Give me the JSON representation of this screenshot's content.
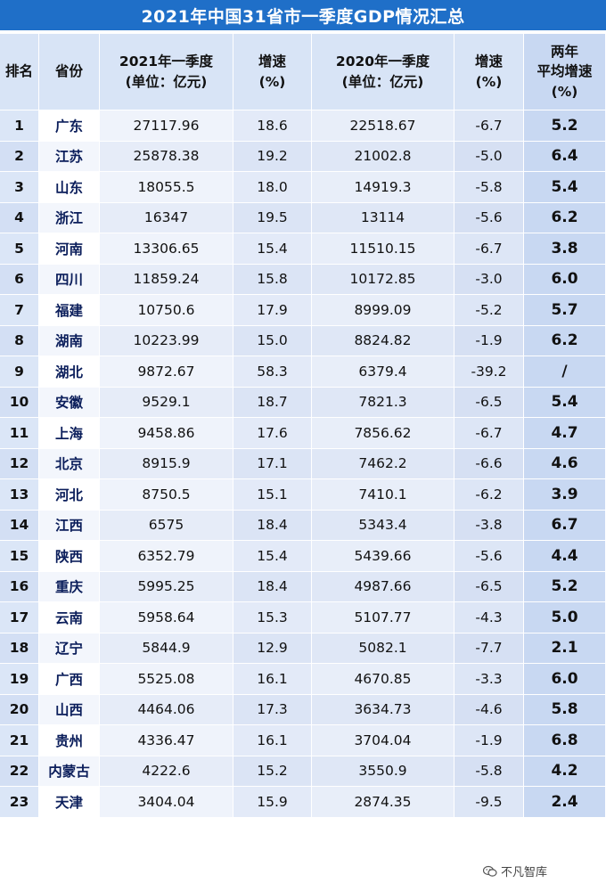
{
  "title": "2021年中国31省市一季度GDP情况汇总",
  "headers": {
    "rank": "排名",
    "province": "省份",
    "gdp2021_line1": "2021年一季度",
    "gdp2021_line2": "(单位：亿元)",
    "speed_line1": "增速",
    "speed_line2": "(%)",
    "gdp2020_line1": "2020年一季度",
    "gdp2020_line2": "(单位：亿元)",
    "speed2020_line1": "增速",
    "speed2020_line2": "(%)",
    "avg_line1": "两年",
    "avg_line2": "平均增速",
    "avg_line3": "(%)"
  },
  "rows": [
    {
      "rank": "1",
      "province": "广东",
      "gdp2021": "27117.96",
      "speed2021": "18.6",
      "gdp2020": "22518.67",
      "speed2020": "-6.7",
      "avg": "5.2"
    },
    {
      "rank": "2",
      "province": "江苏",
      "gdp2021": "25878.38",
      "speed2021": "19.2",
      "gdp2020": "21002.8",
      "speed2020": "-5.0",
      "avg": "6.4"
    },
    {
      "rank": "3",
      "province": "山东",
      "gdp2021": "18055.5",
      "speed2021": "18.0",
      "gdp2020": "14919.3",
      "speed2020": "-5.8",
      "avg": "5.4"
    },
    {
      "rank": "4",
      "province": "浙江",
      "gdp2021": "16347",
      "speed2021": "19.5",
      "gdp2020": "13114",
      "speed2020": "-5.6",
      "avg": "6.2"
    },
    {
      "rank": "5",
      "province": "河南",
      "gdp2021": "13306.65",
      "speed2021": "15.4",
      "gdp2020": "11510.15",
      "speed2020": "-6.7",
      "avg": "3.8"
    },
    {
      "rank": "6",
      "province": "四川",
      "gdp2021": "11859.24",
      "speed2021": "15.8",
      "gdp2020": "10172.85",
      "speed2020": "-3.0",
      "avg": "6.0"
    },
    {
      "rank": "7",
      "province": "福建",
      "gdp2021": "10750.6",
      "speed2021": "17.9",
      "gdp2020": "8999.09",
      "speed2020": "-5.2",
      "avg": "5.7"
    },
    {
      "rank": "8",
      "province": "湖南",
      "gdp2021": "10223.99",
      "speed2021": "15.0",
      "gdp2020": "8824.82",
      "speed2020": "-1.9",
      "avg": "6.2"
    },
    {
      "rank": "9",
      "province": "湖北",
      "gdp2021": "9872.67",
      "speed2021": "58.3",
      "gdp2020": "6379.4",
      "speed2020": "-39.2",
      "avg": "/"
    },
    {
      "rank": "10",
      "province": "安徽",
      "gdp2021": "9529.1",
      "speed2021": "18.7",
      "gdp2020": "7821.3",
      "speed2020": "-6.5",
      "avg": "5.4"
    },
    {
      "rank": "11",
      "province": "上海",
      "gdp2021": "9458.86",
      "speed2021": "17.6",
      "gdp2020": "7856.62",
      "speed2020": "-6.7",
      "avg": "4.7"
    },
    {
      "rank": "12",
      "province": "北京",
      "gdp2021": "8915.9",
      "speed2021": "17.1",
      "gdp2020": "7462.2",
      "speed2020": "-6.6",
      "avg": "4.6"
    },
    {
      "rank": "13",
      "province": "河北",
      "gdp2021": "8750.5",
      "speed2021": "15.1",
      "gdp2020": "7410.1",
      "speed2020": "-6.2",
      "avg": "3.9"
    },
    {
      "rank": "14",
      "province": "江西",
      "gdp2021": "6575",
      "speed2021": "18.4",
      "gdp2020": "5343.4",
      "speed2020": "-3.8",
      "avg": "6.7"
    },
    {
      "rank": "15",
      "province": "陕西",
      "gdp2021": "6352.79",
      "speed2021": "15.4",
      "gdp2020": "5439.66",
      "speed2020": "-5.6",
      "avg": "4.4"
    },
    {
      "rank": "16",
      "province": "重庆",
      "gdp2021": "5995.25",
      "speed2021": "18.4",
      "gdp2020": "4987.66",
      "speed2020": "-6.5",
      "avg": "5.2"
    },
    {
      "rank": "17",
      "province": "云南",
      "gdp2021": "5958.64",
      "speed2021": "15.3",
      "gdp2020": "5107.77",
      "speed2020": "-4.3",
      "avg": "5.0"
    },
    {
      "rank": "18",
      "province": "辽宁",
      "gdp2021": "5844.9",
      "speed2021": "12.9",
      "gdp2020": "5082.1",
      "speed2020": "-7.7",
      "avg": "2.1"
    },
    {
      "rank": "19",
      "province": "广西",
      "gdp2021": "5525.08",
      "speed2021": "16.1",
      "gdp2020": "4670.85",
      "speed2020": "-3.3",
      "avg": "6.0"
    },
    {
      "rank": "20",
      "province": "山西",
      "gdp2021": "4464.06",
      "speed2021": "17.3",
      "gdp2020": "3634.73",
      "speed2020": "-4.6",
      "avg": "5.8"
    },
    {
      "rank": "21",
      "province": "贵州",
      "gdp2021": "4336.47",
      "speed2021": "16.1",
      "gdp2020": "3704.04",
      "speed2020": "-1.9",
      "avg": "6.8"
    },
    {
      "rank": "22",
      "province": "内蒙古",
      "gdp2021": "4222.6",
      "speed2021": "15.2",
      "gdp2020": "3550.9",
      "speed2020": "-5.8",
      "avg": "4.2"
    },
    {
      "rank": "23",
      "province": "天津",
      "gdp2021": "3404.04",
      "speed2021": "15.9",
      "gdp2020": "2874.35",
      "speed2020": "-9.5",
      "avg": "2.4"
    }
  ],
  "watermark": {
    "text": "不凡智库",
    "icon": "wechat-icon"
  }
}
